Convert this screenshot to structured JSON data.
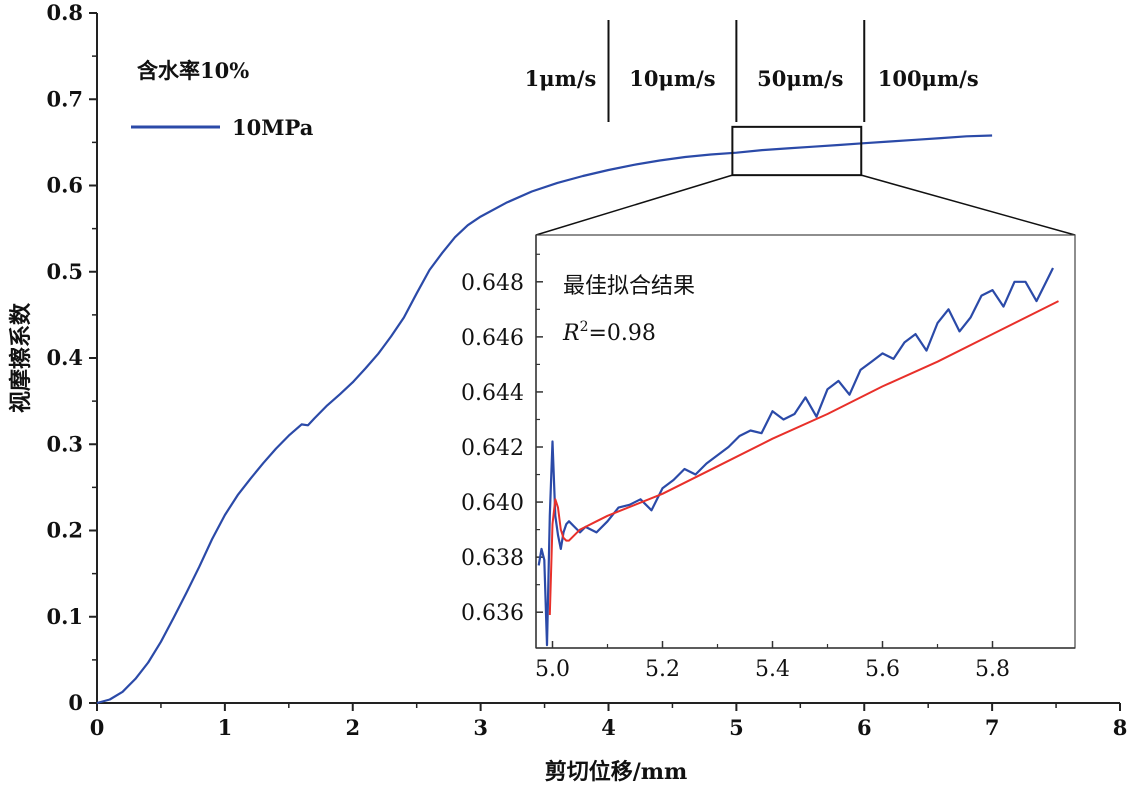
{
  "chart_data": [
    {
      "type": "line",
      "xlabel": "剪切位移/mm",
      "ylabel": "视摩擦系数",
      "xlim": [
        0,
        8
      ],
      "ylim": [
        0,
        0.8
      ],
      "x_ticks": [
        "0",
        "1",
        "2",
        "3",
        "4",
        "5",
        "6",
        "7",
        "8"
      ],
      "y_ticks": [
        "0",
        "0.1",
        "0.2",
        "0.3",
        "0.4",
        "0.5",
        "0.6",
        "0.7",
        "0.8"
      ],
      "annotation": "含水率10%",
      "legend": {
        "position": "top-left",
        "entries": [
          "10MPa"
        ]
      },
      "speed_segments": [
        {
          "label": "1μm/s",
          "x_start": 0,
          "x_end": 4.0
        },
        {
          "label": "10μm/s",
          "x_start": 4.0,
          "x_end": 5.0
        },
        {
          "label": "50μm/s",
          "x_start": 5.0,
          "x_end": 6.0
        },
        {
          "label": "100μm/s",
          "x_start": 6.0,
          "x_end": 7.0
        }
      ],
      "zoom_box": {
        "x": [
          5.0,
          6.0
        ],
        "y": [
          0.612,
          0.668
        ]
      },
      "series": [
        {
          "name": "10MPa",
          "color": "#2b4aa8",
          "x": [
            0,
            0.1,
            0.2,
            0.3,
            0.4,
            0.5,
            0.6,
            0.7,
            0.8,
            0.9,
            1.0,
            1.1,
            1.2,
            1.3,
            1.4,
            1.5,
            1.6,
            1.65,
            1.7,
            1.8,
            1.9,
            2.0,
            2.1,
            2.2,
            2.3,
            2.4,
            2.5,
            2.6,
            2.7,
            2.8,
            2.9,
            3.0,
            3.2,
            3.4,
            3.6,
            3.8,
            4.0,
            4.2,
            4.4,
            4.6,
            4.8,
            5.0,
            5.2,
            5.4,
            5.6,
            5.8,
            6.0,
            6.2,
            6.4,
            6.6,
            6.8,
            7.0
          ],
          "y": [
            0,
            0.004,
            0.013,
            0.028,
            0.047,
            0.071,
            0.099,
            0.128,
            0.158,
            0.19,
            0.218,
            0.241,
            0.26,
            0.278,
            0.295,
            0.31,
            0.323,
            0.322,
            0.33,
            0.345,
            0.358,
            0.372,
            0.388,
            0.405,
            0.425,
            0.447,
            0.475,
            0.502,
            0.522,
            0.54,
            0.554,
            0.564,
            0.58,
            0.593,
            0.603,
            0.611,
            0.618,
            0.624,
            0.629,
            0.633,
            0.636,
            0.638,
            0.641,
            0.643,
            0.645,
            0.647,
            0.649,
            0.651,
            0.653,
            0.655,
            0.657,
            0.658
          ]
        }
      ]
    },
    {
      "type": "line",
      "title": "最佳拟合结果",
      "r2_label": "R",
      "r2_sup": "2",
      "r2_value": "=0.98",
      "xlim": [
        4.97,
        5.95
      ],
      "ylim": [
        0.6347,
        0.6497
      ],
      "x_ticks": [
        "5.0",
        "5.2",
        "5.4",
        "5.6",
        "5.8"
      ],
      "y_ticks": [
        "0.636",
        "0.638",
        "0.640",
        "0.642",
        "0.644",
        "0.646",
        "0.648"
      ],
      "series": [
        {
          "name": "",
          "color": "#2b4aa8",
          "x": [
            4.975,
            4.98,
            4.985,
            4.99,
            4.995,
            5.0,
            5.005,
            5.01,
            5.015,
            5.02,
            5.025,
            5.03,
            5.04,
            5.05,
            5.06,
            5.08,
            5.1,
            5.12,
            5.14,
            5.16,
            5.18,
            5.2,
            5.22,
            5.24,
            5.26,
            5.28,
            5.3,
            5.32,
            5.34,
            5.36,
            5.38,
            5.4,
            5.42,
            5.44,
            5.46,
            5.48,
            5.5,
            5.52,
            5.54,
            5.56,
            5.58,
            5.6,
            5.62,
            5.64,
            5.66,
            5.68,
            5.7,
            5.72,
            5.74,
            5.76,
            5.78,
            5.8,
            5.82,
            5.84,
            5.86,
            5.88,
            5.9,
            5.91
          ],
          "y": [
            0.6377,
            0.6383,
            0.6379,
            0.6348,
            0.6395,
            0.6422,
            0.6395,
            0.6388,
            0.6383,
            0.6389,
            0.6392,
            0.6393,
            0.6391,
            0.6389,
            0.6391,
            0.6389,
            0.6393,
            0.6398,
            0.6399,
            0.6401,
            0.6397,
            0.6405,
            0.6408,
            0.6412,
            0.641,
            0.6414,
            0.6417,
            0.642,
            0.6424,
            0.6426,
            0.6425,
            0.6433,
            0.643,
            0.6432,
            0.6438,
            0.6431,
            0.6441,
            0.6444,
            0.6439,
            0.6448,
            0.6451,
            0.6454,
            0.6452,
            0.6458,
            0.6461,
            0.6455,
            0.6465,
            0.647,
            0.6462,
            0.6467,
            0.6475,
            0.6477,
            0.6471,
            0.648,
            0.648,
            0.6473,
            0.6481,
            0.6485
          ]
        },
        {
          "name": "",
          "color": "#e8302a",
          "x": [
            4.995,
            5.0,
            5.005,
            5.01,
            5.015,
            5.02,
            5.025,
            5.03,
            5.04,
            5.05,
            5.06,
            5.08,
            5.1,
            5.2,
            5.3,
            5.4,
            5.5,
            5.6,
            5.7,
            5.8,
            5.9,
            5.92
          ],
          "y": [
            0.6359,
            0.6392,
            0.6401,
            0.6398,
            0.639,
            0.6387,
            0.6386,
            0.6386,
            0.6388,
            0.639,
            0.6391,
            0.6393,
            0.6395,
            0.6403,
            0.6413,
            0.6423,
            0.6432,
            0.6442,
            0.6451,
            0.6461,
            0.6471,
            0.6473
          ]
        }
      ]
    }
  ]
}
